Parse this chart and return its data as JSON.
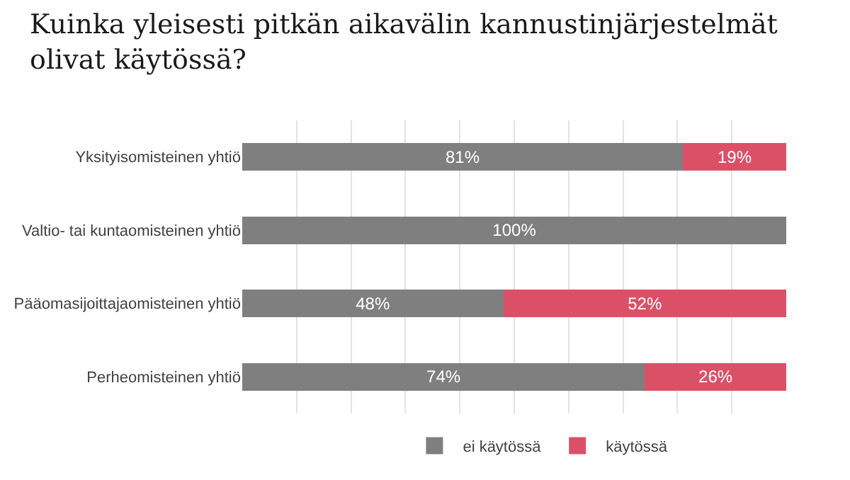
{
  "chart_data": {
    "type": "bar",
    "orientation": "horizontal",
    "stacked": true,
    "title": "Kuinka yleisesti pitkän aikavälin kannustinjärjestelmät olivat käytössä?",
    "categories": [
      "Yksityisomisteinen yhtiö",
      "Valtio- tai kuntaomisteinen yhtiö",
      "Pääomasijoittajaomisteinen yhtiö",
      "Perheomisteinen yhtiö"
    ],
    "series": [
      {
        "name": "ei käytössä",
        "color": "#7f7f7f",
        "values": [
          81,
          100,
          48,
          74
        ],
        "value_labels": [
          "81%",
          "100%",
          "48%",
          "74%"
        ]
      },
      {
        "name": "käytössä",
        "color": "#dc5067",
        "values": [
          19,
          0,
          52,
          26
        ],
        "value_labels": [
          "19%",
          null,
          "52%",
          "26%"
        ]
      }
    ],
    "xlim": [
      0,
      100
    ],
    "tick_labels": "y",
    "grid": "x",
    "legend": "bottom"
  }
}
